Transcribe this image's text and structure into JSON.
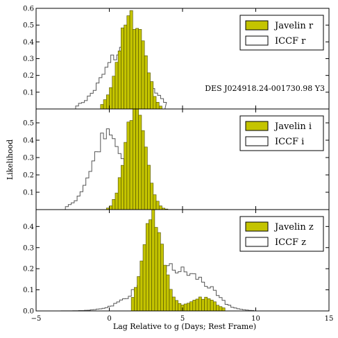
{
  "colors": {
    "javelin": "#c4c400",
    "javelin_edge": "#4a4a00",
    "iccf": "#555555",
    "frame": "#000000"
  },
  "chart_data": {
    "type": "histogram",
    "xlabel": "Lag Relative to g (Days; Rest Frame)",
    "ylabel": "Likelihood",
    "xlim": [
      -5,
      15
    ],
    "xticks": [
      -5,
      0,
      5,
      10,
      15
    ],
    "xtick_labels": [
      "−5",
      "0",
      "5",
      "10",
      "15"
    ],
    "bin_width": 0.2,
    "panels": [
      {
        "band": "r",
        "ylim": [
          0,
          0.6
        ],
        "yticks": [
          0.1,
          0.2,
          0.3,
          0.4,
          0.5,
          0.6
        ],
        "ytick_labels": [
          "0.1",
          "0.2",
          "0.3",
          "0.4",
          "0.5",
          "0.6"
        ],
        "annotation": "DES J024918.24-001730.98 Y3",
        "legend": [
          {
            "label": "Javelin r",
            "style": "filled"
          },
          {
            "label": "ICCF r",
            "style": "outline"
          }
        ],
        "javelin": {
          "mu": 1.3,
          "sigma": 0.75,
          "peak": 0.5,
          "second_mu": 2.3,
          "second_sigma": 0.5,
          "second_peak": 0.2,
          "range": [
            -0.6,
            3.6
          ]
        },
        "iccf": {
          "mu": 1.0,
          "sigma": 1.35,
          "peak": 0.35,
          "range": [
            -2.3,
            3.8
          ]
        }
      },
      {
        "band": "i",
        "ylim": [
          0,
          0.58
        ],
        "yticks": [
          0.1,
          0.2,
          0.3,
          0.4,
          0.5
        ],
        "ytick_labels": [
          "0.1",
          "0.2",
          "0.3",
          "0.4",
          "0.5"
        ],
        "annotation": "",
        "legend": [
          {
            "label": "Javelin i",
            "style": "filled"
          },
          {
            "label": "ICCF i",
            "style": "outline"
          }
        ],
        "javelin": {
          "mu": 1.6,
          "sigma": 0.6,
          "peak": 0.55,
          "second_mu": 2.5,
          "second_sigma": 0.5,
          "second_peak": 0.15,
          "range": [
            -0.2,
            4.0
          ]
        },
        "iccf": {
          "mu": -0.1,
          "sigma": 1.1,
          "peak": 0.42,
          "range": [
            -3.0,
            3.8
          ]
        }
      },
      {
        "band": "z",
        "ylim": [
          0,
          0.48
        ],
        "yticks": [
          0.0,
          0.1,
          0.2,
          0.3,
          0.4
        ],
        "ytick_labels": [
          "0.0",
          "0.1",
          "0.2",
          "0.3",
          "0.4"
        ],
        "annotation": "",
        "legend": [
          {
            "label": "Javelin z",
            "style": "filled"
          },
          {
            "label": "ICCF z",
            "style": "outline"
          }
        ],
        "javelin": {
          "mu": 3.0,
          "sigma": 0.65,
          "peak": 0.42,
          "second_mu": 6.5,
          "second_sigma": 0.7,
          "second_peak": 0.05,
          "tail": 0.05,
          "range": [
            1.5,
            7.8
          ]
        },
        "iccf": {
          "mu": 4.0,
          "sigma": 1.9,
          "peak": 0.2,
          "second_mu": 6.5,
          "second_sigma": 0.9,
          "second_peak": 0.05,
          "range": [
            -4.9,
            9.8
          ]
        }
      }
    ]
  }
}
